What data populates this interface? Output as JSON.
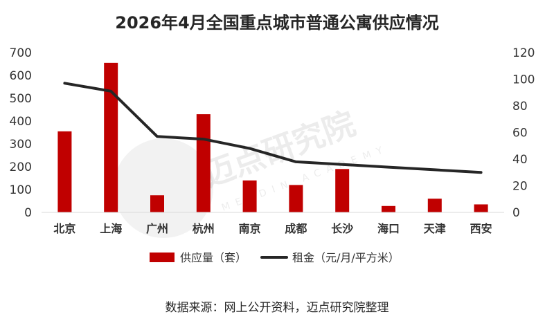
{
  "chart_data": {
    "type": "bar",
    "title": "2026年4月全国重点城市普通公寓供应情况",
    "categories": [
      "北京",
      "上海",
      "广州",
      "杭州",
      "南京",
      "成都",
      "长沙",
      "海口",
      "天津",
      "西安"
    ],
    "series": [
      {
        "name": "供应量（套）",
        "type": "bar",
        "axis": "left",
        "color": "#C00000",
        "values": [
          355,
          655,
          75,
          430,
          140,
          120,
          190,
          28,
          60,
          35
        ]
      },
      {
        "name": "租金（元/月/平方米）",
        "type": "line",
        "axis": "right",
        "color": "#262626",
        "values": [
          97,
          91,
          57,
          55,
          48,
          38,
          36,
          34,
          32,
          30
        ]
      }
    ],
    "y_left": {
      "min": 0,
      "max": 700,
      "ticks": [
        0,
        100,
        200,
        300,
        400,
        500,
        600,
        700
      ]
    },
    "y_right": {
      "min": 0,
      "max": 120,
      "ticks": [
        0,
        20,
        40,
        60,
        80,
        100,
        120
      ]
    },
    "grid": false,
    "legend_position": "bottom"
  },
  "watermark": {
    "text": "迈点研究院",
    "subtext": "MEADIN ACADEMY"
  },
  "source_note": "数据来源：网上公开资料，迈点研究院整理"
}
